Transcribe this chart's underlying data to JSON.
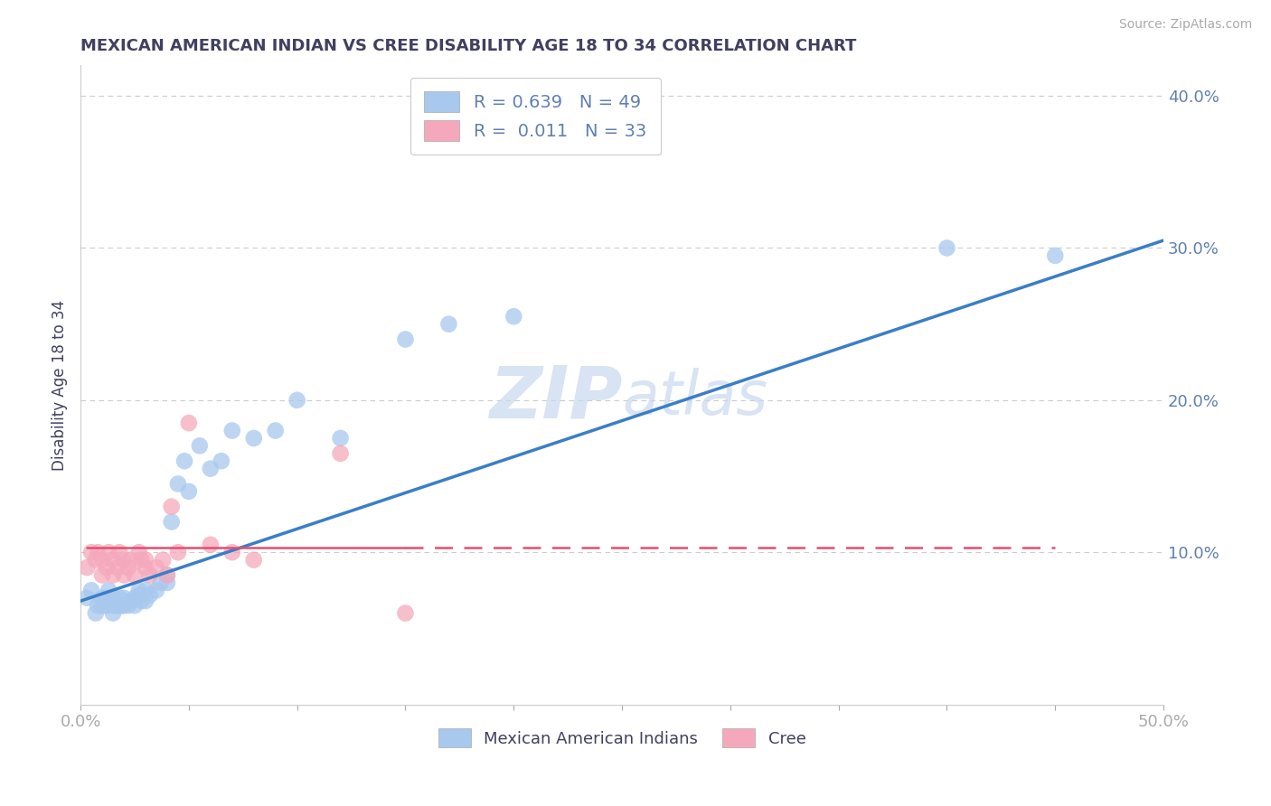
{
  "title": "MEXICAN AMERICAN INDIAN VS CREE DISABILITY AGE 18 TO 34 CORRELATION CHART",
  "source": "Source: ZipAtlas.com",
  "ylabel": "Disability Age 18 to 34",
  "xlim": [
    0.0,
    0.5
  ],
  "ylim": [
    0.0,
    0.42
  ],
  "blue_R": "0.639",
  "blue_N": "49",
  "pink_R": "0.011",
  "pink_N": "33",
  "blue_color": "#A8C8EE",
  "pink_color": "#F5A8BC",
  "blue_line_color": "#3A7EC6",
  "pink_line_color": "#E05070",
  "title_color": "#404060",
  "tick_color": "#6080B0",
  "watermark_color": "#C8D8EE",
  "background_color": "#FFFFFF",
  "blue_x": [
    0.003,
    0.005,
    0.007,
    0.008,
    0.01,
    0.01,
    0.012,
    0.012,
    0.013,
    0.015,
    0.015,
    0.015,
    0.017,
    0.018,
    0.018,
    0.019,
    0.02,
    0.02,
    0.022,
    0.023,
    0.025,
    0.025,
    0.027,
    0.027,
    0.028,
    0.03,
    0.03,
    0.032,
    0.035,
    0.037,
    0.04,
    0.04,
    0.042,
    0.045,
    0.048,
    0.05,
    0.055,
    0.06,
    0.065,
    0.07,
    0.08,
    0.09,
    0.1,
    0.12,
    0.15,
    0.17,
    0.2,
    0.4,
    0.45
  ],
  "blue_y": [
    0.07,
    0.075,
    0.06,
    0.065,
    0.065,
    0.07,
    0.065,
    0.07,
    0.075,
    0.06,
    0.065,
    0.07,
    0.065,
    0.065,
    0.07,
    0.065,
    0.065,
    0.07,
    0.065,
    0.068,
    0.065,
    0.07,
    0.072,
    0.075,
    0.068,
    0.068,
    0.075,
    0.072,
    0.075,
    0.08,
    0.08,
    0.085,
    0.12,
    0.145,
    0.16,
    0.14,
    0.17,
    0.155,
    0.16,
    0.18,
    0.175,
    0.18,
    0.2,
    0.175,
    0.24,
    0.25,
    0.255,
    0.3,
    0.295
  ],
  "pink_x": [
    0.003,
    0.005,
    0.007,
    0.008,
    0.01,
    0.01,
    0.012,
    0.013,
    0.015,
    0.015,
    0.017,
    0.018,
    0.02,
    0.02,
    0.022,
    0.023,
    0.025,
    0.027,
    0.028,
    0.03,
    0.03,
    0.032,
    0.035,
    0.038,
    0.04,
    0.042,
    0.045,
    0.05,
    0.06,
    0.07,
    0.08,
    0.12,
    0.15
  ],
  "pink_y": [
    0.09,
    0.1,
    0.095,
    0.1,
    0.085,
    0.095,
    0.09,
    0.1,
    0.085,
    0.095,
    0.09,
    0.1,
    0.085,
    0.095,
    0.09,
    0.095,
    0.085,
    0.1,
    0.095,
    0.09,
    0.095,
    0.085,
    0.09,
    0.095,
    0.085,
    0.13,
    0.1,
    0.185,
    0.105,
    0.1,
    0.095,
    0.165,
    0.06
  ],
  "blue_line_x0": 0.0,
  "blue_line_x1": 0.5,
  "blue_line_y0": 0.068,
  "blue_line_y1": 0.305,
  "pink_line_x0": 0.003,
  "pink_line_x1": 0.45,
  "pink_line_y0": 0.103,
  "pink_line_y1": 0.103
}
